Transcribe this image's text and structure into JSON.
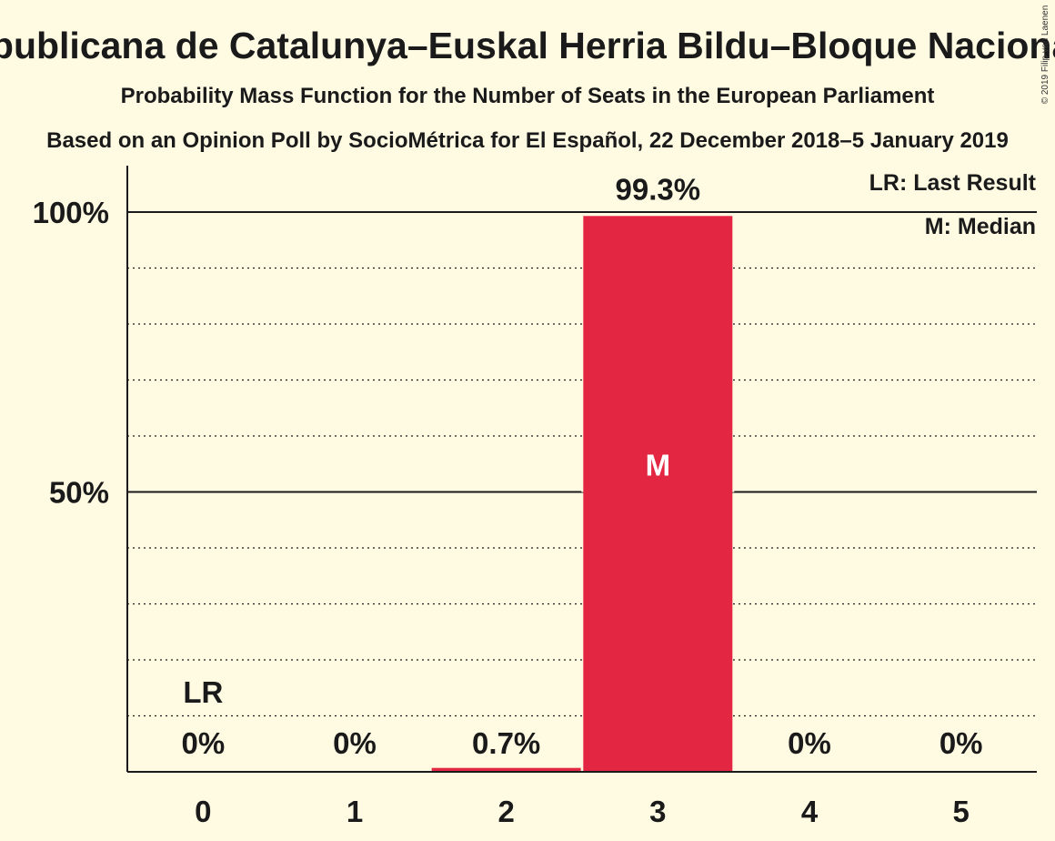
{
  "title": "Esquerra Republicana de Catalunya–Euskal Herria Bildu–Bloque Nacionalista Galego",
  "subtitle": "Probability Mass Function for the Number of Seats in the European Parliament",
  "source": "Based on an Opinion Poll by SocioMétrica for El Español, 22 December 2018–5 January 2019",
  "copyright": "© 2019 Filip van Laenen",
  "legend": {
    "lr": "LR: Last Result",
    "m": "M: Median"
  },
  "colors": {
    "bar": "#e32641",
    "background": "#fffbe3",
    "text": "#1a1a1a"
  },
  "chart_data": {
    "type": "bar",
    "categories": [
      "0",
      "1",
      "2",
      "3",
      "4",
      "5"
    ],
    "values": [
      0,
      0,
      0.7,
      99.3,
      0,
      0
    ],
    "value_labels": [
      "0%",
      "0%",
      "0.7%",
      "99.3%",
      "0%",
      "0%"
    ],
    "ylim": [
      0,
      100
    ],
    "yticks": [
      {
        "value": 50,
        "label": "50%"
      },
      {
        "value": 100,
        "label": "100%"
      }
    ],
    "minor_gridlines_every": 10,
    "last_result_index": 0,
    "last_result_marker": "LR",
    "median_index": 3,
    "median_marker": "M",
    "legend_position": "top-right"
  }
}
